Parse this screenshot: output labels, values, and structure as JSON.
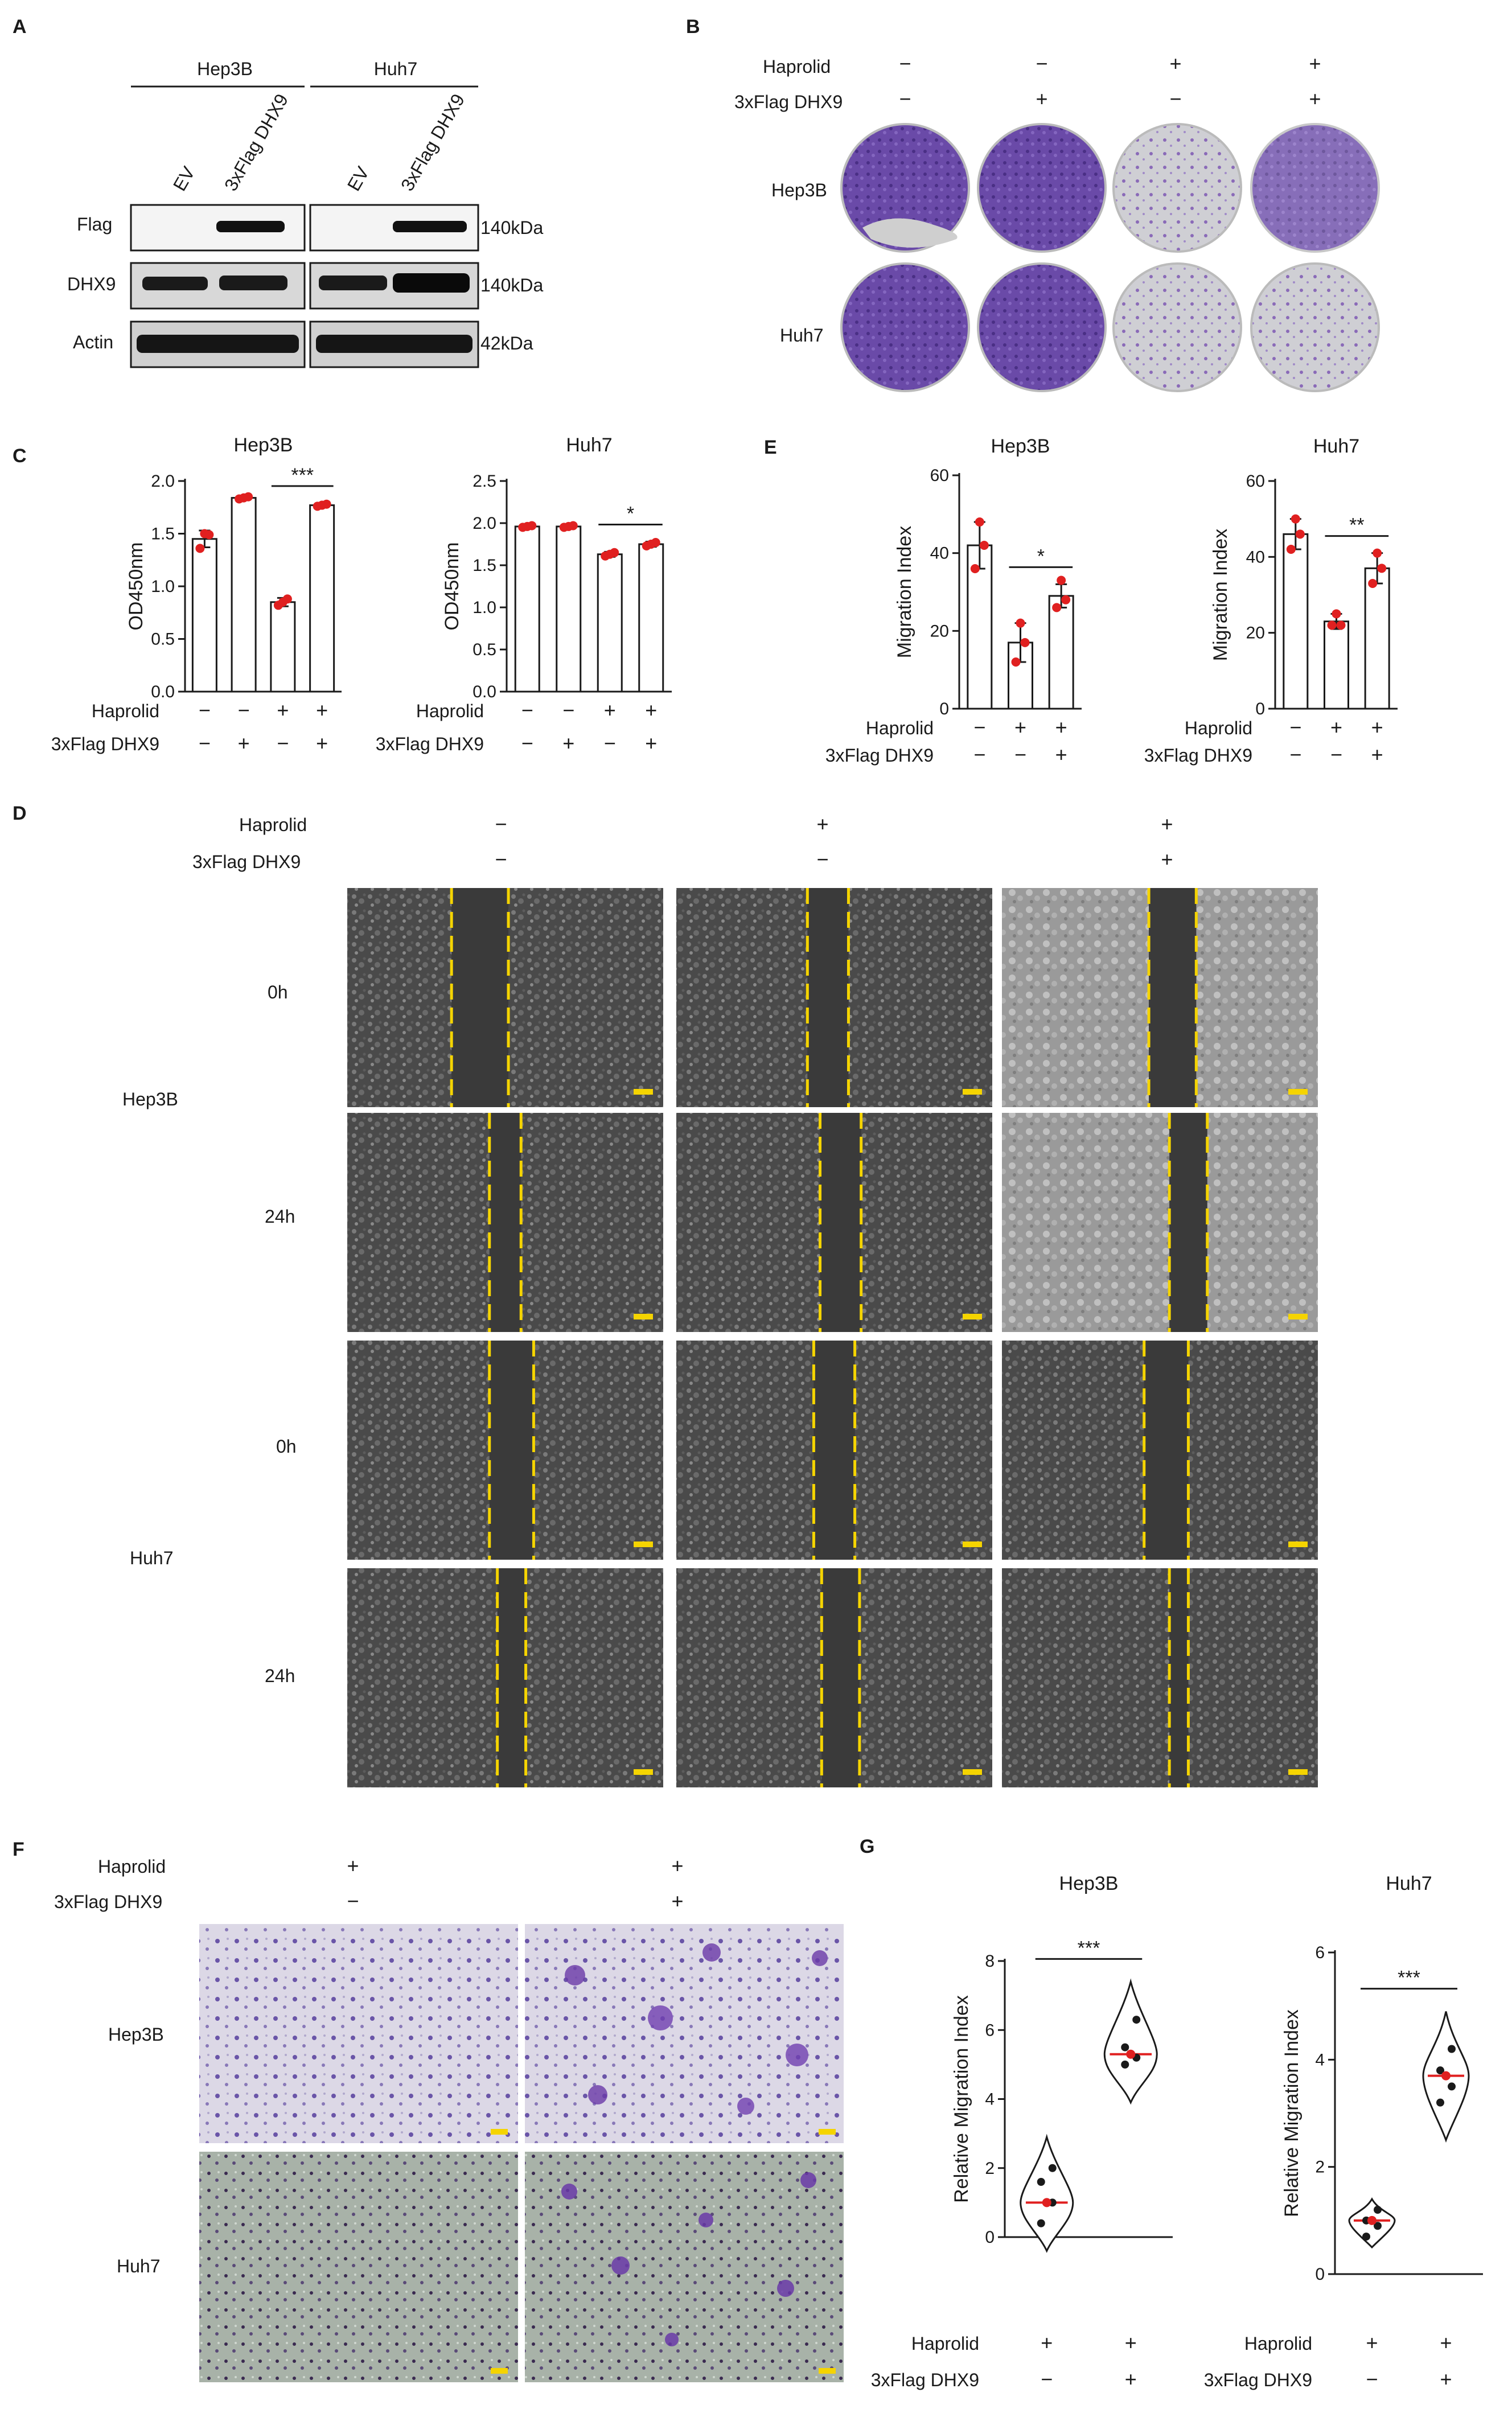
{
  "panels": {
    "a": {
      "letter": "A",
      "cells": [
        "Hep3B",
        "Huh7"
      ],
      "lanes": [
        "EV",
        "3xFlag DHX9",
        "EV",
        "3xFlag DHX9"
      ],
      "rows": [
        "Flag",
        "DHX9",
        "Actin"
      ],
      "sizes": [
        "140kDa",
        "140kDa",
        "42kDa"
      ]
    },
    "b": {
      "letter": "B",
      "treatments": [
        "Haprolid",
        "3xFlag DHX9"
      ],
      "signs": [
        [
          "−",
          "−",
          "+",
          "+"
        ],
        [
          "−",
          "+",
          "−",
          "+"
        ]
      ],
      "rows": [
        "Hep3B",
        "Huh7"
      ]
    },
    "c": {
      "letter": "C"
    },
    "d": {
      "letter": "D",
      "treatments": [
        "Haprolid",
        "3xFlag DHX9"
      ],
      "signs": [
        [
          "−",
          "+",
          "+"
        ],
        [
          "−",
          "−",
          "+"
        ]
      ],
      "times": [
        "0h",
        "24h",
        "0h",
        "24h"
      ],
      "cells": [
        "Hep3B",
        "Huh7"
      ]
    },
    "e": {
      "letter": "E"
    },
    "f": {
      "letter": "F",
      "treatments": [
        "Haprolid",
        "3xFlag DHX9"
      ],
      "signs": [
        [
          "+",
          "+"
        ],
        [
          "−",
          "+"
        ]
      ],
      "cells": [
        "Hep3B",
        "Huh7"
      ]
    },
    "g": {
      "letter": "G"
    }
  },
  "colors": {
    "dot": "#e02020",
    "plate": "#5a3d9a",
    "stain": "#7a55b0",
    "gap": "#f5d400"
  },
  "chart_data": [
    {
      "id": "c1",
      "type": "bar",
      "title": "Hep3B",
      "ylabel": "OD450nm",
      "ylim": [
        0,
        2.0
      ],
      "yticks": [
        "0.0",
        "0.5",
        "1.0",
        "1.5",
        "2.0"
      ],
      "values": [
        1.45,
        1.84,
        0.85,
        1.77
      ],
      "errors": [
        0.08,
        0.02,
        0.04,
        0.02
      ],
      "points": [
        [
          1.36,
          1.5,
          1.49
        ],
        [
          1.83,
          1.84,
          1.85
        ],
        [
          0.82,
          0.85,
          0.88
        ],
        [
          1.76,
          1.77,
          1.78
        ]
      ],
      "signif": [
        {
          "from": 2,
          "to": 3,
          "label": "***"
        }
      ],
      "signs": [
        [
          "−",
          "−",
          "+",
          "+"
        ],
        [
          "−",
          "+",
          "−",
          "+"
        ]
      ],
      "row_labels": [
        "Haprolid",
        "3xFlag DHX9"
      ]
    },
    {
      "id": "c2",
      "type": "bar",
      "title": "Huh7",
      "ylabel": "OD450nm",
      "ylim": [
        0,
        2.5
      ],
      "yticks": [
        "0.0",
        "0.5",
        "1.0",
        "1.5",
        "2.0",
        "2.5"
      ],
      "values": [
        1.96,
        1.96,
        1.63,
        1.75
      ],
      "errors": [
        0.02,
        0.02,
        0.03,
        0.03
      ],
      "points": [
        [
          1.95,
          1.96,
          1.97
        ],
        [
          1.95,
          1.96,
          1.97
        ],
        [
          1.61,
          1.63,
          1.65
        ],
        [
          1.73,
          1.75,
          1.77
        ]
      ],
      "signif": [
        {
          "from": 2,
          "to": 3,
          "label": "*"
        }
      ],
      "signs": [
        [
          "−",
          "−",
          "+",
          "+"
        ],
        [
          "−",
          "+",
          "−",
          "+"
        ]
      ],
      "row_labels": [
        "Haprolid",
        "3xFlag DHX9"
      ]
    },
    {
      "id": "e1",
      "type": "bar",
      "title": "Hep3B",
      "ylabel": "Migration Index",
      "ylim": [
        0,
        60
      ],
      "yticks": [
        "0",
        "20",
        "40",
        "60"
      ],
      "values": [
        42,
        17,
        29
      ],
      "errors": [
        6,
        5,
        3
      ],
      "points": [
        [
          36,
          48,
          42
        ],
        [
          12,
          22,
          17
        ],
        [
          26,
          33,
          28
        ]
      ],
      "signif": [
        {
          "from": 1,
          "to": 2,
          "label": "*"
        }
      ],
      "signs": [
        [
          "−",
          "+",
          "+"
        ],
        [
          "−",
          "−",
          "+"
        ]
      ],
      "row_labels": [
        "Haprolid",
        "3xFlag DHX9"
      ]
    },
    {
      "id": "e2",
      "type": "bar",
      "title": "Huh7",
      "ylabel": "Migration Index",
      "ylim": [
        0,
        60
      ],
      "yticks": [
        "0",
        "20",
        "40",
        "60"
      ],
      "values": [
        46,
        23,
        37
      ],
      "errors": [
        4,
        2,
        4
      ],
      "points": [
        [
          42,
          50,
          46
        ],
        [
          22,
          25,
          22
        ],
        [
          33,
          41,
          37
        ]
      ],
      "signif": [
        {
          "from": 1,
          "to": 2,
          "label": "**"
        }
      ],
      "signs": [
        [
          "−",
          "+",
          "+"
        ],
        [
          "−",
          "−",
          "+"
        ]
      ],
      "row_labels": [
        "Haprolid",
        "3xFlag DHX9"
      ]
    },
    {
      "id": "g1",
      "type": "violin",
      "title": "Hep3B",
      "ylabel": "Relative Migration Index",
      "ylim": [
        0,
        8
      ],
      "yticks": [
        "0",
        "2",
        "4",
        "6",
        "8"
      ],
      "medians": [
        1.0,
        5.3
      ],
      "ranges": [
        [
          -0.4,
          2.9
        ],
        [
          3.9,
          7.4
        ]
      ],
      "points": [
        [
          0.4,
          1.0,
          1.6,
          2.0
        ],
        [
          5.0,
          5.2,
          5.5,
          6.3
        ]
      ],
      "baseline": 0,
      "signif": [
        {
          "from": 0,
          "to": 1,
          "label": "***"
        }
      ],
      "signs": [
        [
          "+",
          "+"
        ],
        [
          "−",
          "+"
        ]
      ],
      "row_labels": [
        "Haprolid",
        "3xFlag DHX9"
      ]
    },
    {
      "id": "g2",
      "type": "violin",
      "title": "Huh7",
      "ylabel": "Relative Migration Index",
      "ylim": [
        0,
        6
      ],
      "yticks": [
        "0",
        "2",
        "4",
        "6"
      ],
      "medians": [
        1.0,
        3.7
      ],
      "ranges": [
        [
          0.5,
          1.4
        ],
        [
          2.5,
          4.9
        ]
      ],
      "points": [
        [
          0.7,
          0.9,
          1.0,
          1.2
        ],
        [
          3.2,
          3.5,
          3.8,
          4.2
        ]
      ],
      "signif": [
        {
          "from": 0,
          "to": 1,
          "label": "***"
        }
      ],
      "signs": [
        [
          "+",
          "+"
        ],
        [
          "−",
          "+"
        ]
      ],
      "row_labels": [
        "Haprolid",
        "3xFlag DHX9"
      ]
    }
  ]
}
